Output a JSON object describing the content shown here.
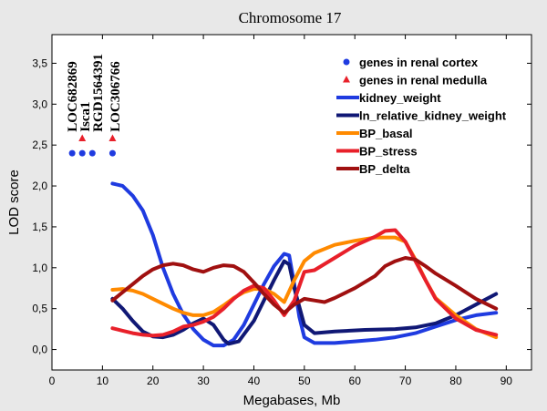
{
  "chart_data": {
    "type": "line",
    "title": "Chromosome 17",
    "xlabel": "Megabases, Mb",
    "ylabel": "LOD score",
    "xlim": [
      0,
      95
    ],
    "ylim": [
      -0.25,
      3.85
    ],
    "x_ticks": [
      "0",
      "10",
      "20",
      "30",
      "40",
      "50",
      "60",
      "70",
      "80",
      "90"
    ],
    "y_ticks": [
      "0,0",
      "0,5",
      "1,0",
      "1,5",
      "2,0",
      "2,5",
      "3,0",
      "3,5"
    ],
    "grid": false,
    "legend_position": "top-right",
    "series": [
      {
        "name": "kidney_weight",
        "color": "#1f3be0",
        "points": [
          [
            12,
            2.03
          ],
          [
            14,
            2.0
          ],
          [
            16,
            1.88
          ],
          [
            18,
            1.7
          ],
          [
            20,
            1.4
          ],
          [
            22,
            1.0
          ],
          [
            24,
            0.68
          ],
          [
            26,
            0.43
          ],
          [
            28,
            0.25
          ],
          [
            30,
            0.12
          ],
          [
            32,
            0.05
          ],
          [
            34,
            0.05
          ],
          [
            36,
            0.12
          ],
          [
            38,
            0.3
          ],
          [
            40,
            0.55
          ],
          [
            42,
            0.8
          ],
          [
            44,
            1.02
          ],
          [
            46,
            1.17
          ],
          [
            47,
            1.15
          ],
          [
            48,
            0.8
          ],
          [
            49,
            0.4
          ],
          [
            50,
            0.15
          ],
          [
            52,
            0.08
          ],
          [
            56,
            0.08
          ],
          [
            60,
            0.1
          ],
          [
            64,
            0.12
          ],
          [
            68,
            0.15
          ],
          [
            72,
            0.2
          ],
          [
            76,
            0.28
          ],
          [
            80,
            0.36
          ],
          [
            84,
            0.42
          ],
          [
            88,
            0.45
          ]
        ]
      },
      {
        "name": "ln_relative_kidney_weight",
        "color": "#101875",
        "points": [
          [
            12,
            0.62
          ],
          [
            14,
            0.5
          ],
          [
            16,
            0.35
          ],
          [
            18,
            0.22
          ],
          [
            20,
            0.16
          ],
          [
            22,
            0.15
          ],
          [
            24,
            0.18
          ],
          [
            26,
            0.24
          ],
          [
            28,
            0.32
          ],
          [
            30,
            0.38
          ],
          [
            32,
            0.3
          ],
          [
            34,
            0.12
          ],
          [
            35,
            0.07
          ],
          [
            37,
            0.1
          ],
          [
            40,
            0.35
          ],
          [
            42,
            0.6
          ],
          [
            44,
            0.85
          ],
          [
            46,
            1.08
          ],
          [
            47,
            1.04
          ],
          [
            48,
            0.75
          ],
          [
            50,
            0.3
          ],
          [
            52,
            0.2
          ],
          [
            56,
            0.22
          ],
          [
            62,
            0.24
          ],
          [
            68,
            0.25
          ],
          [
            72,
            0.27
          ],
          [
            76,
            0.32
          ],
          [
            80,
            0.42
          ],
          [
            84,
            0.55
          ],
          [
            88,
            0.68
          ]
        ]
      },
      {
        "name": "BP_basal",
        "color": "#ff8a00",
        "points": [
          [
            12,
            0.73
          ],
          [
            14,
            0.74
          ],
          [
            16,
            0.72
          ],
          [
            18,
            0.68
          ],
          [
            20,
            0.62
          ],
          [
            22,
            0.56
          ],
          [
            24,
            0.5
          ],
          [
            26,
            0.45
          ],
          [
            28,
            0.42
          ],
          [
            30,
            0.42
          ],
          [
            32,
            0.46
          ],
          [
            34,
            0.54
          ],
          [
            36,
            0.63
          ],
          [
            38,
            0.7
          ],
          [
            40,
            0.74
          ],
          [
            42,
            0.74
          ],
          [
            44,
            0.68
          ],
          [
            46,
            0.58
          ],
          [
            48,
            0.85
          ],
          [
            50,
            1.08
          ],
          [
            52,
            1.18
          ],
          [
            56,
            1.28
          ],
          [
            60,
            1.33
          ],
          [
            64,
            1.37
          ],
          [
            68,
            1.37
          ],
          [
            70,
            1.32
          ],
          [
            72,
            1.1
          ],
          [
            74,
            0.85
          ],
          [
            76,
            0.63
          ],
          [
            80,
            0.42
          ],
          [
            84,
            0.25
          ],
          [
            88,
            0.15
          ]
        ]
      },
      {
        "name": "BP_stress",
        "color": "#e8202a",
        "points": [
          [
            12,
            0.26
          ],
          [
            14,
            0.23
          ],
          [
            16,
            0.2
          ],
          [
            18,
            0.18
          ],
          [
            20,
            0.17
          ],
          [
            22,
            0.18
          ],
          [
            24,
            0.22
          ],
          [
            26,
            0.28
          ],
          [
            28,
            0.3
          ],
          [
            30,
            0.34
          ],
          [
            32,
            0.4
          ],
          [
            34,
            0.5
          ],
          [
            36,
            0.62
          ],
          [
            38,
            0.72
          ],
          [
            40,
            0.78
          ],
          [
            42,
            0.75
          ],
          [
            44,
            0.6
          ],
          [
            46,
            0.42
          ],
          [
            48,
            0.6
          ],
          [
            50,
            0.95
          ],
          [
            52,
            0.97
          ],
          [
            56,
            1.12
          ],
          [
            60,
            1.27
          ],
          [
            64,
            1.38
          ],
          [
            66,
            1.45
          ],
          [
            68,
            1.46
          ],
          [
            70,
            1.32
          ],
          [
            72,
            1.08
          ],
          [
            74,
            0.85
          ],
          [
            76,
            0.62
          ],
          [
            80,
            0.38
          ],
          [
            84,
            0.24
          ],
          [
            88,
            0.18
          ]
        ]
      },
      {
        "name": "BP_delta",
        "color": "#a01010",
        "points": [
          [
            12,
            0.6
          ],
          [
            14,
            0.7
          ],
          [
            16,
            0.8
          ],
          [
            18,
            0.9
          ],
          [
            20,
            0.98
          ],
          [
            22,
            1.03
          ],
          [
            24,
            1.05
          ],
          [
            26,
            1.03
          ],
          [
            28,
            0.98
          ],
          [
            30,
            0.95
          ],
          [
            32,
            1.0
          ],
          [
            34,
            1.03
          ],
          [
            36,
            1.02
          ],
          [
            38,
            0.95
          ],
          [
            40,
            0.82
          ],
          [
            42,
            0.68
          ],
          [
            44,
            0.55
          ],
          [
            46,
            0.45
          ],
          [
            48,
            0.55
          ],
          [
            50,
            0.62
          ],
          [
            52,
            0.6
          ],
          [
            54,
            0.58
          ],
          [
            56,
            0.63
          ],
          [
            60,
            0.75
          ],
          [
            64,
            0.9
          ],
          [
            66,
            1.02
          ],
          [
            68,
            1.08
          ],
          [
            70,
            1.12
          ],
          [
            72,
            1.1
          ],
          [
            74,
            1.02
          ],
          [
            76,
            0.93
          ],
          [
            80,
            0.78
          ],
          [
            84,
            0.62
          ],
          [
            88,
            0.5
          ]
        ]
      }
    ],
    "gene_markers": [
      {
        "label": "LOC682869",
        "x": 4,
        "y": 2.4,
        "type": "cortex"
      },
      {
        "label": "Isca1",
        "x": 6,
        "y": 2.4,
        "type": "cortex"
      },
      {
        "label": "Isca1",
        "x": 6,
        "y": 2.58,
        "type": "medulla"
      },
      {
        "label": "RGD1564391",
        "x": 8,
        "y": 2.4,
        "type": "cortex"
      },
      {
        "label": "LOC306766",
        "x": 12,
        "y": 2.4,
        "type": "cortex"
      },
      {
        "label": "LOC306766",
        "x": 12,
        "y": 2.58,
        "type": "medulla"
      }
    ],
    "gene_labels": [
      {
        "text": "LOC682869",
        "x": 4
      },
      {
        "text": "Isca1",
        "x": 6.5
      },
      {
        "text": "RGD1564391",
        "x": 9
      },
      {
        "text": "LOC306766",
        "x": 12.5
      }
    ],
    "legend": [
      {
        "label": "genes in renal cortex",
        "marker": "circle",
        "color": "#1f3be0"
      },
      {
        "label": "genes in renal medulla",
        "marker": "triangle",
        "color": "#e8202a"
      },
      {
        "label": "kidney_weight",
        "marker": "line",
        "color": "#1f3be0"
      },
      {
        "label": "ln_relative_kidney_weight",
        "marker": "line",
        "color": "#101875"
      },
      {
        "label": "BP_basal",
        "marker": "line",
        "color": "#ff8a00"
      },
      {
        "label": "BP_stress",
        "marker": "line",
        "color": "#e8202a"
      },
      {
        "label": "BP_delta",
        "marker": "line",
        "color": "#a01010"
      }
    ],
    "colors": {
      "background": "#e8e8e8",
      "plot_background": "#ffffff",
      "cortex_marker": "#1f3be0",
      "medulla_marker": "#e8202a"
    }
  }
}
